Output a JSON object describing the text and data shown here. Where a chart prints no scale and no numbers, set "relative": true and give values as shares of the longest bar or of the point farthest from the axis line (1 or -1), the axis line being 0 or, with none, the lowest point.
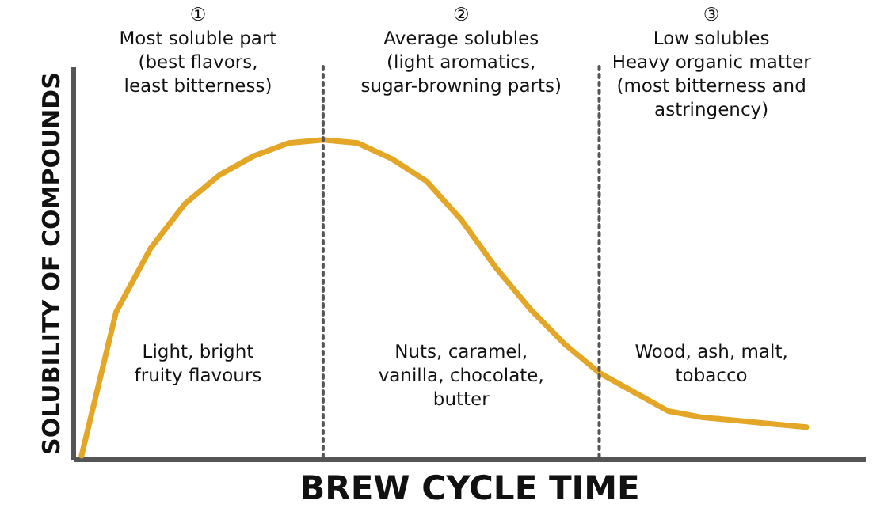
{
  "chart_data": {
    "type": "line",
    "relative": true,
    "xlabel": "BREW CYCLE TIME",
    "ylabel": "SOLUBILITY OF COMPOUNDS",
    "line_style": "solid",
    "categories": [
      null,
      null,
      null,
      null,
      null,
      null,
      null,
      null,
      null,
      null,
      null,
      null,
      null,
      null,
      null,
      null,
      null,
      null,
      null,
      null,
      null,
      null
    ],
    "series": [
      {
        "color": "#e3a626",
        "values": [
          0.01,
          0.46,
          0.66,
          0.8,
          0.89,
          0.95,
          0.99,
          1.0,
          0.99,
          0.94,
          0.87,
          0.75,
          0.6,
          0.47,
          0.36,
          0.27,
          0.21,
          0.15,
          0.13,
          0.12,
          0.11,
          0.1
        ]
      }
    ],
    "annotations": [
      "①\nMost soluble part\n(best flavors,\nleast bitterness)",
      "②\nAverage solubles\n(light aromatics,\nsugar-browning parts)",
      "③\nLow solubles\nHeavy organic matter\n(most bitterness and\nastringency)",
      "Light, bright\nfruity flavours",
      "Nuts, caramel,\nvanilla, chocolate,\nbutter",
      "Wood, ash, malt,\ntobacco"
    ]
  }
}
